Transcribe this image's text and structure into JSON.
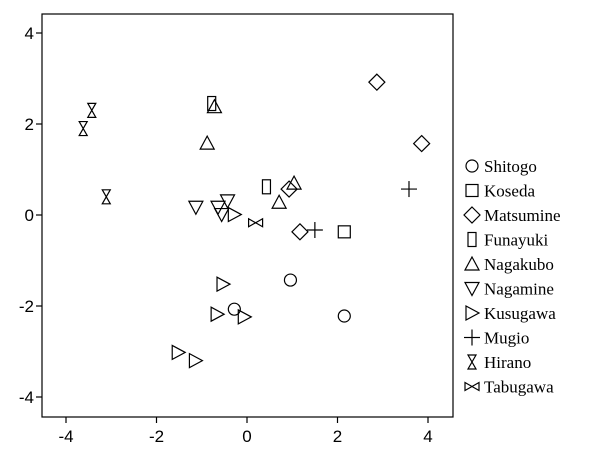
{
  "chart_data": {
    "type": "scatter",
    "title": "",
    "xlabel": "",
    "ylabel": "",
    "xlim": [
      -4.5,
      4.5
    ],
    "ylim": [
      -4.5,
      4.2
    ],
    "x_ticks": [
      -4,
      -2,
      0,
      2,
      4
    ],
    "y_ticks": [
      4,
      2,
      0,
      -2,
      -4
    ],
    "x_tick_labels": [
      "-4",
      "-2",
      "0",
      "2",
      "4"
    ],
    "y_tick_labels": [
      "4",
      "2",
      "0",
      "-2",
      "-4"
    ],
    "grid": false,
    "legend_position": "right",
    "series": [
      {
        "name": "Shitogo",
        "marker": "circle",
        "points": [
          [
            -0.28,
            -2.07
          ],
          [
            0.96,
            -1.43
          ],
          [
            2.15,
            -2.22
          ]
        ]
      },
      {
        "name": "Koseda",
        "marker": "square",
        "points": [
          [
            2.15,
            -0.37
          ]
        ]
      },
      {
        "name": "Matsumine",
        "marker": "diamond",
        "points": [
          [
            2.87,
            2.92
          ],
          [
            3.86,
            1.57
          ],
          [
            0.93,
            0.57
          ],
          [
            1.17,
            -0.37
          ]
        ]
      },
      {
        "name": "Funayuki",
        "marker": "rect",
        "points": [
          [
            -0.78,
            2.45
          ],
          [
            0.43,
            0.62
          ]
        ]
      },
      {
        "name": "Nagakubo",
        "marker": "triangle-up",
        "points": [
          [
            -0.72,
            2.38
          ],
          [
            -0.88,
            1.58
          ],
          [
            0.71,
            0.28
          ],
          [
            1.04,
            0.7
          ]
        ]
      },
      {
        "name": "Nagamine",
        "marker": "triangle-down",
        "points": [
          [
            -1.13,
            0.17
          ],
          [
            -0.64,
            0.17
          ],
          [
            -0.43,
            0.31
          ],
          [
            -0.56,
            0.01
          ]
        ]
      },
      {
        "name": "Kusugawa",
        "marker": "triangle-right",
        "points": [
          [
            -0.53,
            -1.52
          ],
          [
            -0.66,
            -2.18
          ],
          [
            -0.06,
            -2.24
          ],
          [
            -1.52,
            -3.02
          ],
          [
            -1.14,
            -3.2
          ],
          [
            -0.28,
            0.01
          ]
        ]
      },
      {
        "name": "Mugio",
        "marker": "plus",
        "points": [
          [
            3.58,
            0.57
          ],
          [
            1.5,
            -0.33
          ]
        ]
      },
      {
        "name": "Hirano",
        "marker": "hourglass",
        "points": [
          [
            -3.43,
            2.3
          ],
          [
            -3.62,
            1.9
          ],
          [
            -3.11,
            0.4
          ]
        ]
      },
      {
        "name": "Tabugawa",
        "marker": "bowtie",
        "points": [
          [
            0.19,
            -0.17
          ]
        ]
      }
    ]
  }
}
